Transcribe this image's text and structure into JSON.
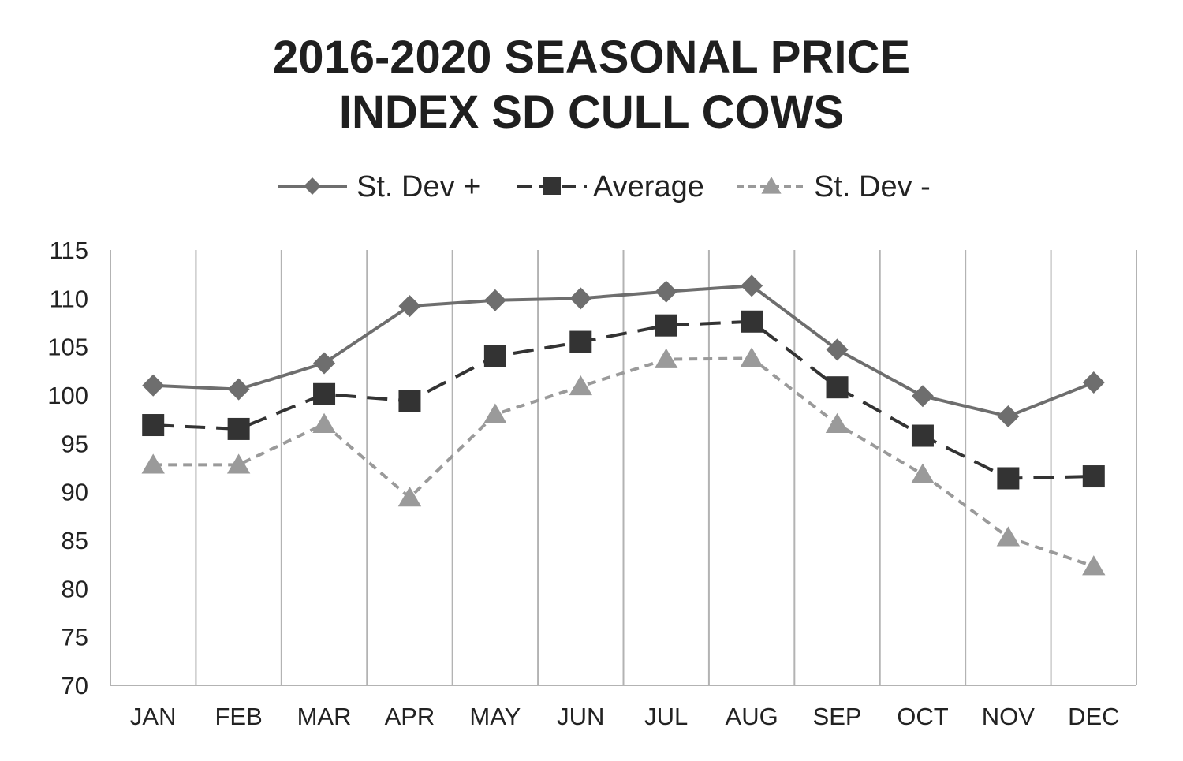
{
  "chart_data": {
    "type": "line",
    "title_lines": [
      "2016-2020 SEASONAL PRICE",
      "INDEX SD CULL COWS"
    ],
    "xlabel": "",
    "ylabel": "",
    "categories": [
      "JAN",
      "FEB",
      "MAR",
      "APR",
      "MAY",
      "JUN",
      "JUL",
      "AUG",
      "SEP",
      "OCT",
      "NOV",
      "DEC"
    ],
    "ylim": [
      70,
      115
    ],
    "yticks": [
      115,
      110,
      105,
      100,
      95,
      90,
      85,
      80,
      75,
      70
    ],
    "grid": "vertical",
    "legend_position": "top",
    "series": [
      {
        "name": "St. Dev +",
        "marker": "diamond",
        "line_style": "solid",
        "color": "#6e6e6e",
        "values": [
          101.0,
          100.6,
          103.3,
          109.2,
          109.8,
          110.0,
          110.7,
          111.3,
          104.7,
          99.9,
          97.8,
          101.3
        ]
      },
      {
        "name": "Average",
        "marker": "square",
        "line_style": "dashed",
        "color": "#333333",
        "values": [
          96.9,
          96.5,
          100.1,
          99.4,
          104.0,
          105.5,
          107.2,
          107.6,
          100.8,
          95.8,
          91.4,
          91.6
        ]
      },
      {
        "name": "St. Dev -",
        "marker": "triangle",
        "line_style": "dotted",
        "color": "#9a9a9a",
        "values": [
          92.8,
          92.8,
          97.0,
          89.4,
          98.0,
          100.9,
          103.7,
          103.8,
          97.0,
          91.8,
          85.3,
          82.3
        ]
      }
    ]
  }
}
